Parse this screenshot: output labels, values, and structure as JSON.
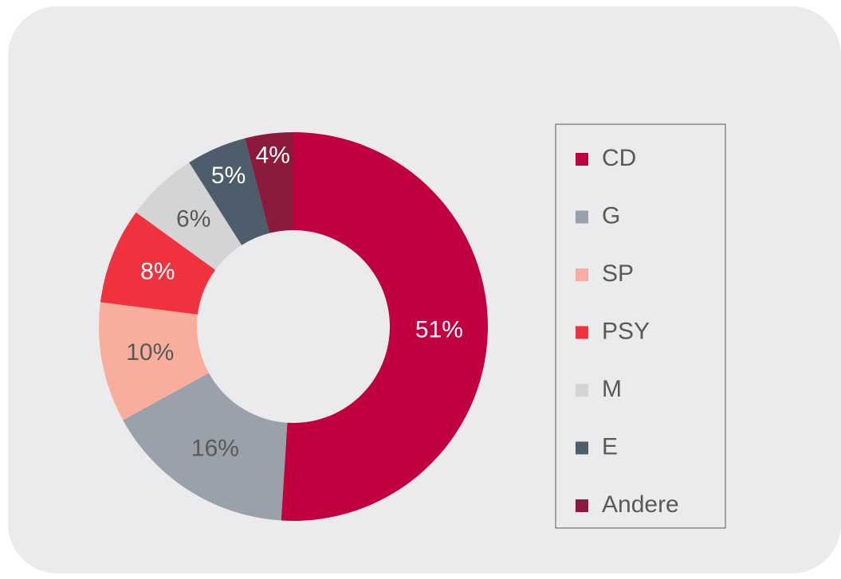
{
  "chart_data": {
    "type": "donut",
    "categories": [
      "CD",
      "G",
      "SP",
      "PSY",
      "M",
      "E",
      "Andere"
    ],
    "values": [
      51,
      16,
      10,
      8,
      6,
      5,
      4
    ],
    "value_labels": [
      "51%",
      "16%",
      "10%",
      "8%",
      "6%",
      "5%",
      "4%"
    ],
    "colors": [
      "#c0003f",
      "#9aa1ab",
      "#f8ad9d",
      "#f0323f",
      "#d3d4d6",
      "#4d5d6b",
      "#8b1a3c"
    ],
    "legend": "right"
  }
}
